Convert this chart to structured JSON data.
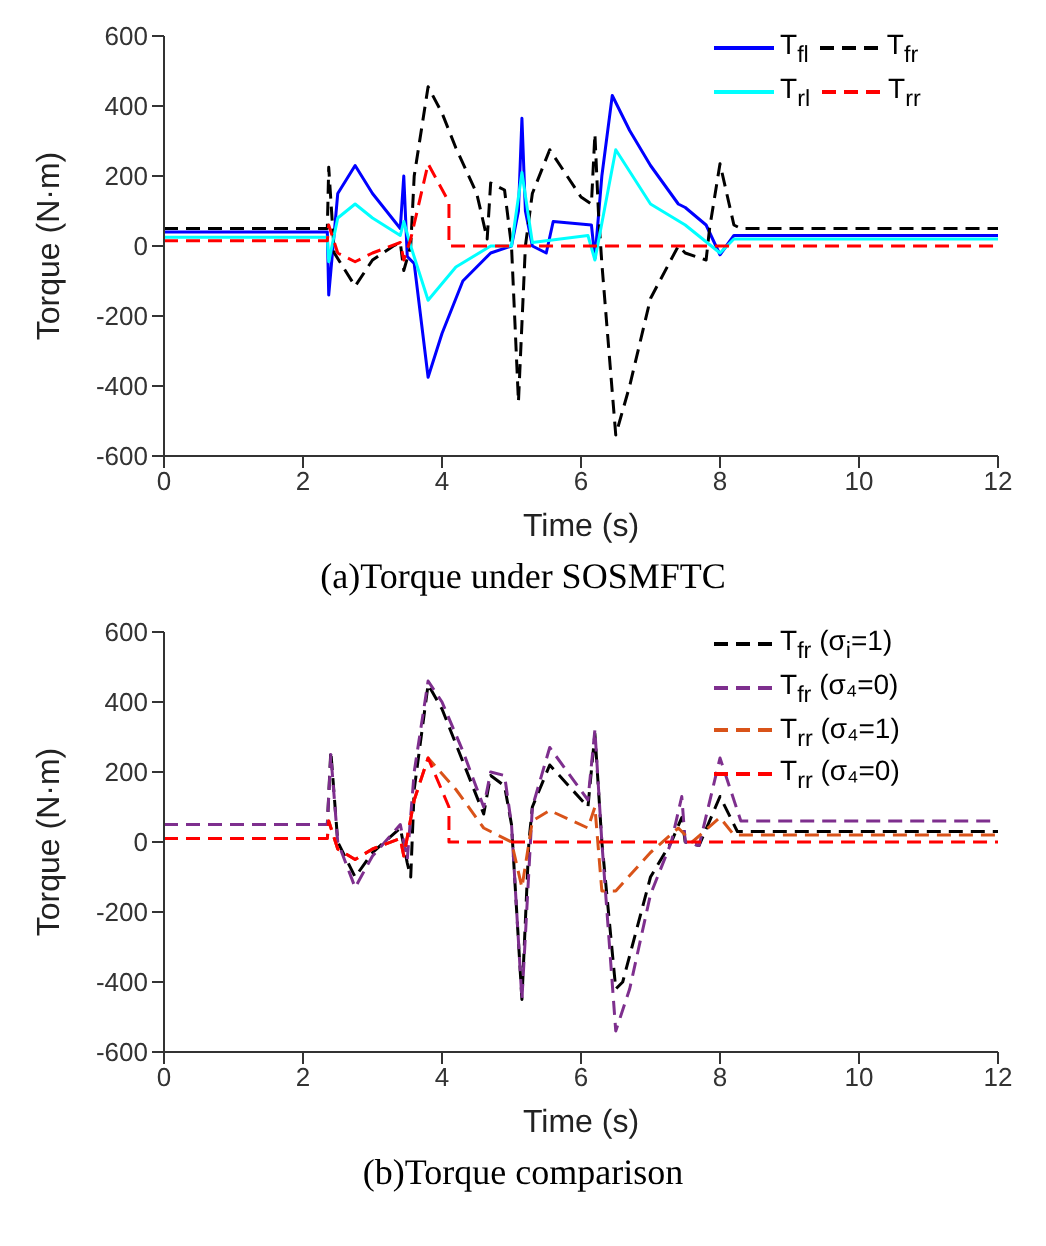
{
  "chart_data": [
    {
      "type": "line",
      "title": "(a)Torque under SOSMFTC",
      "xlabel": "Time (s)",
      "ylabel": "Torque (N·m)",
      "xlim": [
        0,
        12
      ],
      "xticks": [
        0,
        2,
        4,
        6,
        8,
        10,
        12
      ],
      "ylim": [
        -600,
        600
      ],
      "yticks": [
        -600,
        -400,
        -200,
        0,
        200,
        400,
        600
      ],
      "grid": false,
      "legend": "top right",
      "series": [
        {
          "name": "T$_{fl}$",
          "color": "#0000ff",
          "line_style": "solid",
          "x": [
            0,
            2.35,
            2.37,
            2.5,
            2.75,
            3.0,
            3.4,
            3.45,
            3.5,
            3.6,
            3.8,
            4.0,
            4.3,
            4.7,
            5.0,
            5.1,
            5.15,
            5.2,
            5.3,
            5.5,
            5.6,
            6.15,
            6.2,
            6.3,
            6.45,
            6.7,
            7.0,
            7.4,
            7.5,
            7.8,
            8.0,
            8.2,
            12
          ],
          "values": [
            40,
            40,
            -140,
            150,
            230,
            150,
            50,
            200,
            -30,
            -50,
            -375,
            -250,
            -100,
            -20,
            0,
            100,
            365,
            100,
            0,
            -20,
            70,
            60,
            -35,
            200,
            430,
            330,
            230,
            120,
            110,
            60,
            -25,
            30,
            30
          ]
        },
        {
          "name": "T$_{fr}$",
          "color": "#000000",
          "line_style": "dashed",
          "x": [
            0,
            2.35,
            2.37,
            2.45,
            2.75,
            3.0,
            3.3,
            3.4,
            3.45,
            3.55,
            3.6,
            3.8,
            4.0,
            4.2,
            4.5,
            4.65,
            4.7,
            4.9,
            5.0,
            5.1,
            5.2,
            5.3,
            5.55,
            6.0,
            6.15,
            6.2,
            6.25,
            6.3,
            6.5,
            6.7,
            7.0,
            7.4,
            7.5,
            7.8,
            7.85,
            8.0,
            8.2,
            8.3,
            12
          ],
          "values": [
            50,
            50,
            225,
            -20,
            -115,
            -40,
            0,
            10,
            -70,
            0,
            200,
            455,
            380,
            280,
            150,
            20,
            180,
            160,
            0,
            -445,
            0,
            150,
            275,
            140,
            120,
            320,
            100,
            -50,
            -540,
            -400,
            -150,
            0,
            -20,
            -40,
            50,
            235,
            60,
            50,
            50
          ]
        },
        {
          "name": "T$_{rl}$",
          "color": "#00ffff",
          "line_style": "solid",
          "x": [
            0,
            2.35,
            2.37,
            2.5,
            2.75,
            3.0,
            3.4,
            3.45,
            3.55,
            3.8,
            4.2,
            4.7,
            5.0,
            5.15,
            5.3,
            6.1,
            6.2,
            6.5,
            7.0,
            7.5,
            8.0,
            8.2,
            12
          ],
          "values": [
            25,
            25,
            -45,
            80,
            120,
            80,
            30,
            70,
            0,
            -155,
            -60,
            0,
            0,
            210,
            10,
            30,
            -40,
            275,
            120,
            60,
            -20,
            20,
            20
          ]
        },
        {
          "name": "T$_{rr}$",
          "color": "#ff0000",
          "line_style": "dashed",
          "x": [
            0,
            2.35,
            2.37,
            2.5,
            2.75,
            3.0,
            3.4,
            3.45,
            3.55,
            3.8,
            4.1,
            4.1,
            12
          ],
          "values": [
            15,
            15,
            60,
            -20,
            -45,
            -20,
            10,
            -40,
            20,
            235,
            125,
            0,
            0
          ]
        }
      ]
    },
    {
      "type": "line",
      "title": "(b)Torque comparison",
      "xlabel": "Time (s)",
      "ylabel": "Torque (N·m)",
      "xlim": [
        0,
        12
      ],
      "xticks": [
        0,
        2,
        4,
        6,
        8,
        10,
        12
      ],
      "ylim": [
        -600,
        600
      ],
      "yticks": [
        -600,
        -400,
        -200,
        0,
        200,
        400,
        600
      ],
      "grid": false,
      "legend": "top right",
      "series": [
        {
          "name": "T$_{fr}$  (σ$_{i}$=1)",
          "color": "#000000",
          "line_style": "dashed",
          "x": [
            0,
            2.35,
            2.4,
            2.5,
            2.75,
            3.0,
            3.4,
            3.5,
            3.55,
            3.6,
            3.8,
            4.0,
            4.3,
            4.6,
            4.7,
            4.9,
            5.0,
            5.15,
            5.25,
            5.3,
            5.55,
            6.1,
            6.2,
            6.3,
            6.5,
            6.6,
            6.8,
            7.0,
            7.3,
            7.45,
            7.5,
            7.7,
            8.0,
            8.25,
            12
          ],
          "values": [
            50,
            50,
            260,
            0,
            -100,
            -30,
            40,
            -60,
            -100,
            150,
            450,
            380,
            230,
            80,
            190,
            160,
            50,
            -450,
            0,
            100,
            220,
            100,
            310,
            0,
            -420,
            -400,
            -250,
            -100,
            0,
            70,
            0,
            -10,
            130,
            30,
            30
          ]
        },
        {
          "name": "T$_{fr}$  (σ₄=0)",
          "color": "#7e2f8e",
          "line_style": "dashed",
          "x": [
            0,
            2.35,
            2.4,
            2.5,
            2.75,
            3.0,
            3.4,
            3.5,
            3.6,
            3.8,
            4.0,
            4.3,
            4.6,
            4.7,
            4.9,
            5.0,
            5.15,
            5.3,
            5.55,
            6.1,
            6.2,
            6.3,
            6.5,
            6.7,
            7.0,
            7.3,
            7.45,
            7.5,
            7.7,
            8.0,
            8.3,
            12
          ],
          "values": [
            50,
            50,
            250,
            0,
            -130,
            -40,
            50,
            -50,
            200,
            460,
            400,
            260,
            100,
            200,
            190,
            50,
            -450,
            100,
            270,
            120,
            320,
            0,
            -540,
            -420,
            -150,
            0,
            130,
            0,
            -10,
            240,
            60,
            60
          ]
        },
        {
          "name": "T$_{rr}$  (σ₄=1)",
          "color": "#d95319",
          "line_style": "dashed",
          "x": [
            0,
            2.35,
            2.37,
            2.5,
            2.75,
            3.0,
            3.4,
            3.45,
            3.6,
            3.8,
            4.2,
            4.6,
            4.7,
            5.0,
            5.15,
            5.3,
            5.55,
            6.1,
            6.2,
            6.3,
            6.5,
            7.0,
            7.4,
            7.45,
            7.6,
            8.0,
            8.2,
            12
          ],
          "values": [
            10,
            10,
            60,
            -20,
            -50,
            -20,
            10,
            -40,
            120,
            240,
            150,
            40,
            30,
            0,
            -130,
            60,
            90,
            40,
            100,
            -140,
            -140,
            -30,
            40,
            30,
            0,
            70,
            20,
            20
          ]
        },
        {
          "name": "T$_{rr}$  (σ₄=0)",
          "color": "#ff0000",
          "line_style": "dashed",
          "x": [
            0,
            2.35,
            2.37,
            2.5,
            2.75,
            3.0,
            3.4,
            3.45,
            3.6,
            3.8,
            4.1,
            4.1,
            12
          ],
          "values": [
            10,
            10,
            60,
            -20,
            -50,
            -20,
            10,
            -40,
            120,
            240,
            100,
            0,
            0
          ]
        }
      ]
    }
  ]
}
